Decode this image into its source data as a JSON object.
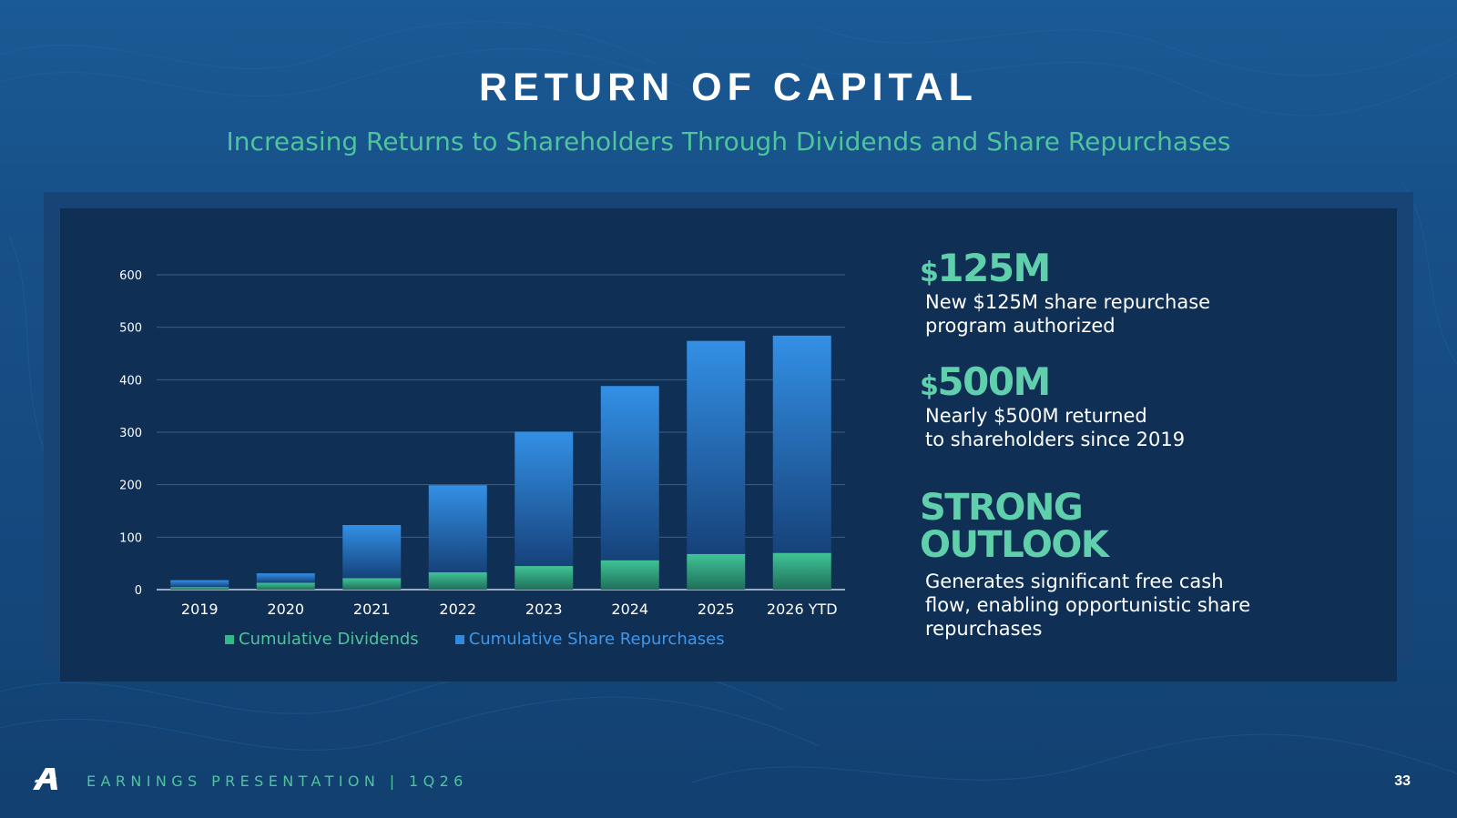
{
  "slide": {
    "title": "RETURN OF CAPITAL",
    "subtitle": "Increasing Returns to Shareholders Through Dividends and Share Repurchases"
  },
  "chart_data": {
    "type": "bar",
    "stacked": true,
    "categories": [
      "2019",
      "2020",
      "2021",
      "2022",
      "2023",
      "2024",
      "2025",
      "2026 YTD"
    ],
    "series": [
      {
        "name": "Cumulative Dividends",
        "color": "#36b98a",
        "values": [
          5,
          13,
          22,
          33,
          45,
          56,
          68,
          70
        ]
      },
      {
        "name": "Cumulative Share Repurchases",
        "color": "#2f8ae0",
        "values": [
          13,
          18,
          101,
          166,
          256,
          332,
          406,
          414
        ]
      }
    ],
    "ylim": [
      0,
      600
    ],
    "yticks": [
      "0",
      "100",
      "200",
      "300",
      "400",
      "500",
      "600"
    ],
    "grid": true,
    "legend_position": "bottom"
  },
  "stats": [
    {
      "prefix": "$",
      "value": "125M",
      "desc": "New $125M share repurchase\nprogram authorized"
    },
    {
      "prefix": "$",
      "value": "500M",
      "desc": "Nearly $500M returned\nto shareholders since 2019"
    }
  ],
  "outlook": {
    "heading": "STRONG\nOUTLOOK",
    "desc": "Generates significant free cash\nflow, enabling opportunistic share\nrepurchases"
  },
  "footer": {
    "text": "EARNINGS PRESENTATION  |  1Q26",
    "page_number": "33"
  },
  "colors": {
    "accent_green": "#4fc39c",
    "highlight_green": "#5fd0ab",
    "legend_blue": "#3f97ea"
  }
}
